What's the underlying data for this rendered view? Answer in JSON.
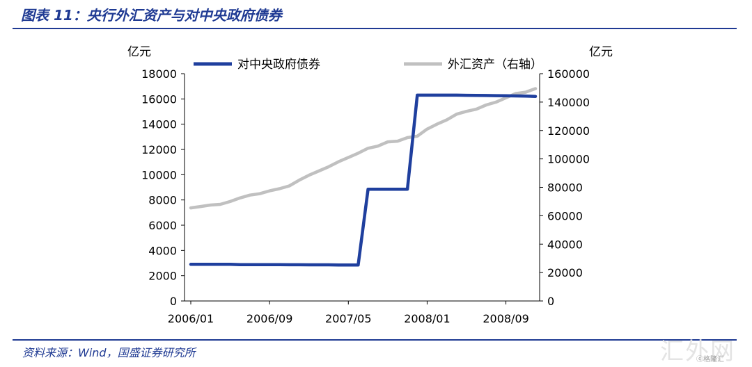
{
  "header": {
    "title": "图表 11：央行外汇资产与对中央政府债券"
  },
  "footer": {
    "source": "资料来源：Wind，国盛证券研究所"
  },
  "watermark": {
    "text": "汇外网",
    "badge": "ⓒ格隆汇"
  },
  "chart_data": {
    "type": "line",
    "left_axis_unit": "亿元",
    "right_axis_unit": "亿元",
    "ylim_left": [
      0,
      18000
    ],
    "ylim_right": [
      0,
      160000
    ],
    "yticks_left": [
      "0",
      "2000",
      "4000",
      "6000",
      "8000",
      "10000",
      "12000",
      "14000",
      "16000",
      "18000"
    ],
    "yticks_right": [
      "0",
      "20000",
      "40000",
      "60000",
      "80000",
      "100000",
      "120000",
      "140000",
      "160000"
    ],
    "x_tick_labels": [
      "2006/01",
      "2006/09",
      "2007/05",
      "2008/01",
      "2008/09"
    ],
    "x": [
      "2006/01",
      "2006/02",
      "2006/03",
      "2006/04",
      "2006/05",
      "2006/06",
      "2006/07",
      "2006/08",
      "2006/09",
      "2006/10",
      "2006/11",
      "2006/12",
      "2007/01",
      "2007/02",
      "2007/03",
      "2007/04",
      "2007/05",
      "2007/06",
      "2007/07",
      "2007/08",
      "2007/09",
      "2007/10",
      "2007/11",
      "2007/12",
      "2008/01",
      "2008/02",
      "2008/03",
      "2008/04",
      "2008/05",
      "2008/06",
      "2008/07",
      "2008/08",
      "2008/09",
      "2008/10",
      "2008/11",
      "2008/12"
    ],
    "legend_position": "top",
    "grid": false,
    "series": [
      {
        "name": "对中央政府债券",
        "axis": "left",
        "color": "#1f3f9e",
        "values": [
          2900,
          2900,
          2900,
          2900,
          2900,
          2880,
          2880,
          2880,
          2880,
          2880,
          2870,
          2870,
          2860,
          2860,
          2860,
          2850,
          2850,
          2850,
          8850,
          8850,
          8850,
          8850,
          8850,
          16300,
          16300,
          16300,
          16300,
          16300,
          16290,
          16280,
          16270,
          16260,
          16250,
          16240,
          16220,
          16200
        ]
      },
      {
        "name": "外汇资产（右轴）",
        "axis": "right",
        "color": "#c0c0c0",
        "values": [
          65500,
          66500,
          67500,
          68000,
          70000,
          72500,
          74500,
          75500,
          77500,
          79000,
          81000,
          85000,
          88500,
          91500,
          94500,
          98000,
          101000,
          104000,
          107500,
          109000,
          112000,
          112500,
          115000,
          116000,
          121000,
          124500,
          127500,
          131500,
          133500,
          135000,
          138000,
          140000,
          143000,
          146000,
          147000,
          149500
        ]
      }
    ]
  }
}
